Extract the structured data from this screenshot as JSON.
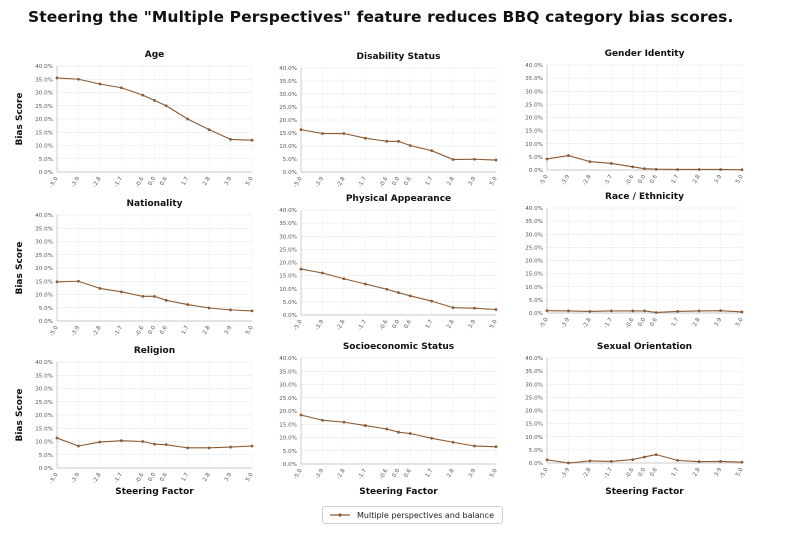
{
  "title": "Steering the \"Multiple Perspectives\" feature reduces BBQ category bias scores.",
  "colors": {
    "series": "#8c5a34",
    "grid": "#e6e6e6",
    "axis": "#777777"
  },
  "legend": {
    "label": "Multiple perspectives and balance",
    "placement": "bottom-center"
  },
  "chart_data": [
    {
      "type": "line",
      "title": "Age",
      "ylabel": "Bias Score",
      "xlabel": "",
      "x": [
        -5.0,
        -3.9,
        -2.8,
        -1.7,
        -0.6,
        0.0,
        0.6,
        1.7,
        2.8,
        3.9,
        5.0
      ],
      "x_tick_labels": [
        "-5.0",
        "-3.9",
        "-2.8",
        "-1.7",
        "-0.6",
        "0.0",
        "0.6",
        "1.7",
        "2.8",
        "3.9",
        "5.0"
      ],
      "y_tick_labels": [
        "0.0%",
        "5.0%",
        "10.0%",
        "15.0%",
        "20.0%",
        "25.0%",
        "30.0%",
        "35.0%",
        "40.0%"
      ],
      "ylim": [
        0,
        40
      ],
      "grid": true,
      "series": [
        {
          "name": "Multiple perspectives and balance",
          "values": [
            35.5,
            35.0,
            33.2,
            31.8,
            29.0,
            27.0,
            25.0,
            20.0,
            16.0,
            12.3,
            12.0
          ]
        }
      ]
    },
    {
      "type": "line",
      "title": "Disability Status",
      "ylabel": "",
      "xlabel": "",
      "x": [
        -5.0,
        -3.9,
        -2.8,
        -1.7,
        -0.6,
        0.0,
        0.6,
        1.7,
        2.8,
        3.9,
        5.0
      ],
      "x_tick_labels": [
        "-5.0",
        "-3.9",
        "-2.8",
        "-1.7",
        "-0.6",
        "0.0",
        "0.6",
        "1.7",
        "2.8",
        "3.9",
        "5.0"
      ],
      "y_tick_labels": [
        "0.0%",
        "5.0%",
        "10.0%",
        "15.0%",
        "20.0%",
        "25.0%",
        "30.0%",
        "35.0%",
        "40.0%"
      ],
      "ylim": [
        0,
        40
      ],
      "grid": true,
      "series": [
        {
          "name": "Multiple perspectives and balance",
          "values": [
            16.3,
            14.8,
            14.8,
            13.0,
            11.8,
            11.8,
            10.2,
            8.2,
            4.8,
            4.9,
            4.6
          ]
        }
      ]
    },
    {
      "type": "line",
      "title": "Gender Identity",
      "ylabel": "",
      "xlabel": "",
      "x": [
        -5.0,
        -3.9,
        -2.8,
        -1.7,
        -0.6,
        0.0,
        0.6,
        1.7,
        2.8,
        3.9,
        5.0
      ],
      "x_tick_labels": [
        "-5.0",
        "-3.9",
        "-2.8",
        "-1.7",
        "-0.6",
        "0.0",
        "0.6",
        "1.7",
        "2.8",
        "3.9",
        "5.0"
      ],
      "y_tick_labels": [
        "0.0%",
        "5.0%",
        "10.0%",
        "15.0%",
        "20.0%",
        "25.0%",
        "30.0%",
        "35.0%",
        "40.0%"
      ],
      "ylim": [
        0,
        40
      ],
      "grid": true,
      "series": [
        {
          "name": "Multiple perspectives and balance",
          "values": [
            4.2,
            5.5,
            3.2,
            2.5,
            1.2,
            0.5,
            0.3,
            0.2,
            0.2,
            0.2,
            0.1
          ]
        }
      ]
    },
    {
      "type": "line",
      "title": "Nationality",
      "ylabel": "Bias Score",
      "xlabel": "",
      "x": [
        -5.0,
        -3.9,
        -2.8,
        -1.7,
        -0.6,
        0.0,
        0.6,
        1.7,
        2.8,
        3.9,
        5.0
      ],
      "x_tick_labels": [
        "-5.0",
        "-3.9",
        "-2.8",
        "-1.7",
        "-0.6",
        "0.0",
        "0.6",
        "1.7",
        "2.8",
        "3.9",
        "5.0"
      ],
      "y_tick_labels": [
        "0.0%",
        "5.0%",
        "10.0%",
        "15.0%",
        "20.0%",
        "25.0%",
        "30.0%",
        "35.0%",
        "40.0%"
      ],
      "ylim": [
        0,
        40
      ],
      "grid": true,
      "series": [
        {
          "name": "Multiple perspectives and balance",
          "values": [
            14.8,
            15.0,
            12.3,
            11.0,
            9.3,
            9.3,
            7.8,
            6.2,
            4.9,
            4.2,
            3.8
          ]
        }
      ]
    },
    {
      "type": "line",
      "title": "Physical Appearance",
      "ylabel": "",
      "xlabel": "",
      "x": [
        -5.0,
        -3.9,
        -2.8,
        -1.7,
        -0.6,
        0.0,
        0.6,
        1.7,
        2.8,
        3.9,
        5.0
      ],
      "x_tick_labels": [
        "-5.0",
        "-3.9",
        "-2.8",
        "-1.7",
        "-0.6",
        "0.0",
        "0.6",
        "1.7",
        "2.8",
        "3.9",
        "5.0"
      ],
      "y_tick_labels": [
        "0.0%",
        "5.0%",
        "10.0%",
        "15.0%",
        "20.0%",
        "25.0%",
        "30.0%",
        "35.0%",
        "40.0%"
      ],
      "ylim": [
        0,
        40
      ],
      "grid": true,
      "series": [
        {
          "name": "Multiple perspectives and balance",
          "values": [
            17.5,
            16.0,
            13.8,
            11.8,
            9.8,
            8.5,
            7.3,
            5.3,
            2.8,
            2.6,
            2.1
          ]
        }
      ]
    },
    {
      "type": "line",
      "title": "Race / Ethnicity",
      "ylabel": "",
      "xlabel": "",
      "x": [
        -5.0,
        -3.9,
        -2.8,
        -1.7,
        -0.6,
        0.0,
        0.6,
        1.7,
        2.8,
        3.9,
        5.0
      ],
      "x_tick_labels": [
        "-5.0",
        "-3.9",
        "-2.8",
        "-1.7",
        "-0.6",
        "0.0",
        "0.6",
        "1.7",
        "2.8",
        "3.9",
        "5.0"
      ],
      "y_tick_labels": [
        "0.0%",
        "5.0%",
        "10.0%",
        "15.0%",
        "20.0%",
        "25.0%",
        "30.0%",
        "35.0%",
        "40.0%"
      ],
      "ylim": [
        0,
        40
      ],
      "grid": true,
      "series": [
        {
          "name": "Multiple perspectives and balance",
          "values": [
            0.9,
            0.8,
            0.6,
            0.8,
            0.8,
            0.8,
            0.2,
            0.6,
            0.8,
            0.9,
            0.4
          ]
        }
      ]
    },
    {
      "type": "line",
      "title": "Religion",
      "ylabel": "Bias Score",
      "xlabel": "Steering Factor",
      "x": [
        -5.0,
        -3.9,
        -2.8,
        -1.7,
        -0.6,
        0.0,
        0.6,
        1.7,
        2.8,
        3.9,
        5.0
      ],
      "x_tick_labels": [
        "-5.0",
        "-3.9",
        "-2.8",
        "-1.7",
        "-0.6",
        "0.0",
        "0.6",
        "1.7",
        "2.8",
        "3.9",
        "5.0"
      ],
      "y_tick_labels": [
        "0.0%",
        "5.0%",
        "10.0%",
        "15.0%",
        "20.0%",
        "25.0%",
        "30.0%",
        "35.0%",
        "40.0%"
      ],
      "ylim": [
        0,
        40
      ],
      "grid": true,
      "series": [
        {
          "name": "Multiple perspectives and balance",
          "values": [
            11.3,
            8.3,
            9.8,
            10.3,
            10.0,
            9.0,
            8.8,
            7.6,
            7.6,
            7.9,
            8.3
          ]
        }
      ]
    },
    {
      "type": "line",
      "title": "Socioeconomic Status",
      "ylabel": "",
      "xlabel": "Steering Factor",
      "x": [
        -5.0,
        -3.9,
        -2.8,
        -1.7,
        -0.6,
        0.0,
        0.6,
        1.7,
        2.8,
        3.9,
        5.0
      ],
      "x_tick_labels": [
        "-5.0",
        "-3.9",
        "-2.8",
        "-1.7",
        "-0.6",
        "0.0",
        "0.6",
        "1.7",
        "2.8",
        "3.9",
        "5.0"
      ],
      "y_tick_labels": [
        "0.0%",
        "5.0%",
        "10.0%",
        "15.0%",
        "20.0%",
        "25.0%",
        "30.0%",
        "35.0%",
        "40.0%"
      ],
      "ylim": [
        0,
        40
      ],
      "grid": true,
      "series": [
        {
          "name": "Multiple perspectives and balance",
          "values": [
            18.5,
            16.5,
            15.8,
            14.5,
            13.2,
            12.0,
            11.5,
            9.7,
            8.2,
            6.8,
            6.5
          ]
        }
      ]
    },
    {
      "type": "line",
      "title": "Sexual Orientation",
      "ylabel": "",
      "xlabel": "Steering Factor",
      "x": [
        -5.0,
        -3.9,
        -2.8,
        -1.7,
        -0.6,
        0.0,
        0.6,
        1.7,
        2.8,
        3.9,
        5.0
      ],
      "x_tick_labels": [
        "-5.0",
        "-3.9",
        "-2.8",
        "-1.7",
        "-0.6",
        "0.0",
        "0.6",
        "1.7",
        "2.8",
        "3.9",
        "5.0"
      ],
      "y_tick_labels": [
        "0.0%",
        "5.0%",
        "10.0%",
        "15.0%",
        "20.0%",
        "25.0%",
        "30.0%",
        "35.0%",
        "40.0%"
      ],
      "ylim": [
        0,
        40
      ],
      "grid": true,
      "series": [
        {
          "name": "Multiple perspectives and balance",
          "values": [
            1.2,
            0.0,
            0.8,
            0.6,
            1.3,
            2.3,
            3.2,
            1.0,
            0.5,
            0.6,
            0.3
          ]
        }
      ]
    }
  ]
}
